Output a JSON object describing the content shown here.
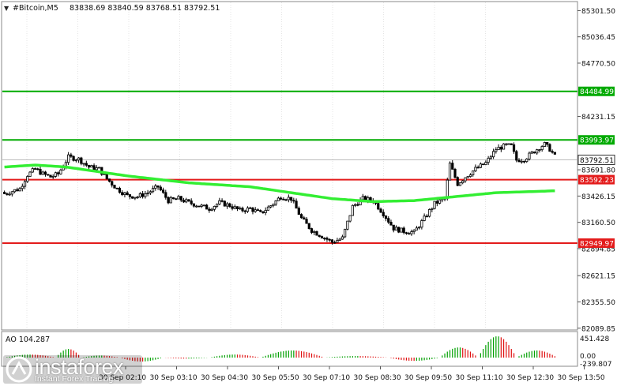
{
  "header": {
    "symbol": "#Bitcoin,M5",
    "ohlc": "83838.69 83840.59 83768.51 83792.51"
  },
  "levels": {
    "upper_green": "84484.99",
    "green": "83993.97",
    "current": "83792.51",
    "red": "83592.23",
    "lower_red": "82949.97"
  },
  "oscillator": {
    "label": "AO 104.287",
    "ticks": [
      "451.428",
      "0.00",
      "-239.807"
    ]
  },
  "watermark": {
    "text": "instaforex",
    "subtext": "Instant Forex Trading"
  },
  "colors": {
    "green_line": "#00aa00",
    "red_line": "#e31b1b",
    "ma": "#33ee33",
    "ao_up": "#00a000",
    "ao_down": "#e01010"
  },
  "chart_data": {
    "type": "candlestick",
    "price_axis": {
      "ticks": [
        85301.5,
        85036.45,
        84770.5,
        84231.15,
        83691.8,
        83426.15,
        83160.5,
        82894.85,
        82621.15,
        82355.5,
        82089.85
      ],
      "range": [
        82080,
        85385
      ]
    },
    "x_axis": {
      "tick_labels": [
        "30 Sep 02:10",
        "30 Sep 03:10",
        "30 Sep 04:30",
        "30 Sep 05:50",
        "30 Sep 07:10",
        "30 Sep 08:30",
        "30 Sep 09:50",
        "30 Sep 11:10",
        "30 Sep 12:30",
        "30 Sep 13:50"
      ]
    },
    "horizontal_levels": [
      {
        "price": 84484.99,
        "color": "green"
      },
      {
        "price": 83993.97,
        "color": "green"
      },
      {
        "price": 83592.23,
        "color": "red"
      },
      {
        "price": 82949.97,
        "color": "red"
      }
    ],
    "close_anchors": [
      [
        0,
        83450
      ],
      [
        6,
        83500
      ],
      [
        9,
        83640
      ],
      [
        12,
        83700
      ],
      [
        15,
        83650
      ],
      [
        18,
        83620
      ],
      [
        21,
        83650
      ],
      [
        25,
        83820
      ],
      [
        29,
        83800
      ],
      [
        33,
        83720
      ],
      [
        37,
        83700
      ],
      [
        40,
        83600
      ],
      [
        44,
        83500
      ],
      [
        48,
        83430
      ],
      [
        52,
        83420
      ],
      [
        56,
        83460
      ],
      [
        60,
        83520
      ],
      [
        64,
        83380
      ],
      [
        68,
        83400
      ],
      [
        72,
        83360
      ],
      [
        76,
        83330
      ],
      [
        80,
        83300
      ],
      [
        84,
        83360
      ],
      [
        88,
        83330
      ],
      [
        92,
        83280
      ],
      [
        96,
        83300
      ],
      [
        100,
        83250
      ],
      [
        104,
        83330
      ],
      [
        108,
        83420
      ],
      [
        112,
        83400
      ],
      [
        116,
        83200
      ],
      [
        120,
        83080
      ],
      [
        124,
        83020
      ],
      [
        128,
        82960
      ],
      [
        132,
        83000
      ],
      [
        136,
        83320
      ],
      [
        140,
        83400
      ],
      [
        144,
        83380
      ],
      [
        148,
        83250
      ],
      [
        152,
        83100
      ],
      [
        156,
        83070
      ],
      [
        160,
        83060
      ],
      [
        164,
        83200
      ],
      [
        168,
        83350
      ],
      [
        172,
        83400
      ],
      [
        174,
        83750
      ],
      [
        177,
        83550
      ],
      [
        180,
        83620
      ],
      [
        184,
        83700
      ],
      [
        188,
        83760
      ],
      [
        192,
        83900
      ],
      [
        196,
        83940
      ],
      [
        198,
        83930
      ],
      [
        200,
        83790
      ],
      [
        203,
        83800
      ],
      [
        206,
        83860
      ],
      [
        209,
        83920
      ],
      [
        211,
        83950
      ],
      [
        213,
        83900
      ],
      [
        216,
        83792.51
      ]
    ],
    "moving_average": [
      [
        0,
        83720
      ],
      [
        12,
        83740
      ],
      [
        24,
        83720
      ],
      [
        48,
        83630
      ],
      [
        72,
        83560
      ],
      [
        96,
        83520
      ],
      [
        112,
        83460
      ],
      [
        128,
        83400
      ],
      [
        144,
        83370
      ],
      [
        160,
        83380
      ],
      [
        176,
        83420
      ],
      [
        192,
        83460
      ],
      [
        216,
        83480
      ]
    ],
    "ao": {
      "bars": 216,
      "max": 451.428,
      "min": -239.807,
      "segments": [
        [
          0,
          20,
          60
        ],
        [
          20,
          30,
          170
        ],
        [
          30,
          45,
          40
        ],
        [
          45,
          62,
          -120
        ],
        [
          62,
          80,
          -30
        ],
        [
          80,
          100,
          60
        ],
        [
          100,
          125,
          140
        ],
        [
          125,
          150,
          30
        ],
        [
          150,
          170,
          -100
        ],
        [
          170,
          185,
          200
        ],
        [
          185,
          200,
          420
        ],
        [
          200,
          216,
          140
        ]
      ]
    }
  }
}
